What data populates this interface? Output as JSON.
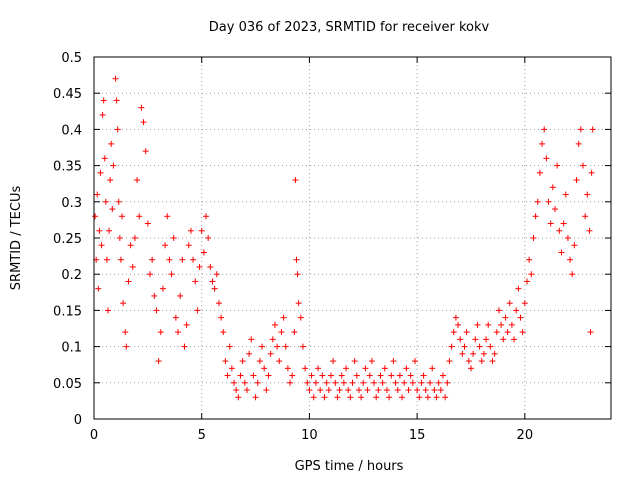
{
  "chart_data": {
    "type": "scatter",
    "title": "Day 036 of 2023, SRMTID for receiver kokv",
    "xlabel": "GPS time / hours",
    "ylabel": "SRMTID / TECUs",
    "xlim": [
      0,
      24
    ],
    "ylim": [
      0,
      0.5
    ],
    "xticks": [
      0,
      5,
      10,
      15,
      20
    ],
    "yticks": [
      0,
      0.05,
      0.1,
      0.15,
      0.2,
      0.25,
      0.3,
      0.35,
      0.4,
      0.45,
      0.5
    ],
    "xtick_labels": [
      "0",
      "5",
      "10",
      "15",
      "20"
    ],
    "ytick_labels": [
      "0",
      "0.05",
      "0.1",
      "0.15",
      "0.2",
      "0.25",
      "0.3",
      "0.35",
      "0.4",
      "0.45",
      "0.5"
    ],
    "grid": true,
    "marker": "+",
    "series": [
      {
        "name": "SRMTID",
        "color": "#ff0000",
        "points": [
          [
            0.05,
            0.28
          ],
          [
            0.1,
            0.22
          ],
          [
            0.15,
            0.31
          ],
          [
            0.2,
            0.18
          ],
          [
            0.25,
            0.26
          ],
          [
            0.3,
            0.34
          ],
          [
            0.35,
            0.24
          ],
          [
            0.4,
            0.42
          ],
          [
            0.45,
            0.44
          ],
          [
            0.5,
            0.36
          ],
          [
            0.55,
            0.3
          ],
          [
            0.6,
            0.22
          ],
          [
            0.65,
            0.15
          ],
          [
            0.7,
            0.26
          ],
          [
            0.75,
            0.33
          ],
          [
            0.8,
            0.38
          ],
          [
            0.85,
            0.29
          ],
          [
            0.9,
            0.35
          ],
          [
            1.0,
            0.47
          ],
          [
            1.05,
            0.44
          ],
          [
            1.1,
            0.4
          ],
          [
            1.15,
            0.3
          ],
          [
            1.2,
            0.25
          ],
          [
            1.25,
            0.22
          ],
          [
            1.3,
            0.28
          ],
          [
            1.35,
            0.16
          ],
          [
            1.45,
            0.12
          ],
          [
            1.5,
            0.1
          ],
          [
            1.6,
            0.19
          ],
          [
            1.7,
            0.24
          ],
          [
            1.8,
            0.21
          ],
          [
            1.9,
            0.25
          ],
          [
            2.0,
            0.33
          ],
          [
            2.1,
            0.28
          ],
          [
            2.2,
            0.43
          ],
          [
            2.3,
            0.41
          ],
          [
            2.4,
            0.37
          ],
          [
            2.5,
            0.27
          ],
          [
            2.6,
            0.2
          ],
          [
            2.7,
            0.22
          ],
          [
            2.8,
            0.17
          ],
          [
            2.9,
            0.15
          ],
          [
            3.0,
            0.08
          ],
          [
            3.1,
            0.12
          ],
          [
            3.2,
            0.18
          ],
          [
            3.3,
            0.24
          ],
          [
            3.4,
            0.28
          ],
          [
            3.5,
            0.22
          ],
          [
            3.6,
            0.2
          ],
          [
            3.7,
            0.25
          ],
          [
            3.8,
            0.14
          ],
          [
            3.9,
            0.12
          ],
          [
            4.0,
            0.17
          ],
          [
            4.1,
            0.22
          ],
          [
            4.2,
            0.1
          ],
          [
            4.3,
            0.13
          ],
          [
            4.4,
            0.24
          ],
          [
            4.5,
            0.26
          ],
          [
            4.6,
            0.22
          ],
          [
            4.7,
            0.19
          ],
          [
            4.8,
            0.15
          ],
          [
            4.9,
            0.21
          ],
          [
            5.0,
            0.26
          ],
          [
            5.1,
            0.23
          ],
          [
            5.2,
            0.28
          ],
          [
            5.3,
            0.25
          ],
          [
            5.4,
            0.21
          ],
          [
            5.5,
            0.19
          ],
          [
            5.6,
            0.18
          ],
          [
            5.7,
            0.2
          ],
          [
            5.8,
            0.16
          ],
          [
            5.9,
            0.14
          ],
          [
            6.0,
            0.12
          ],
          [
            6.1,
            0.08
          ],
          [
            6.2,
            0.06
          ],
          [
            6.3,
            0.1
          ],
          [
            6.4,
            0.07
          ],
          [
            6.5,
            0.05
          ],
          [
            6.6,
            0.04
          ],
          [
            6.7,
            0.03
          ],
          [
            6.8,
            0.06
          ],
          [
            6.9,
            0.08
          ],
          [
            7.0,
            0.05
          ],
          [
            7.1,
            0.04
          ],
          [
            7.2,
            0.09
          ],
          [
            7.3,
            0.11
          ],
          [
            7.4,
            0.06
          ],
          [
            7.5,
            0.03
          ],
          [
            7.6,
            0.05
          ],
          [
            7.7,
            0.08
          ],
          [
            7.8,
            0.1
          ],
          [
            7.9,
            0.07
          ],
          [
            8.0,
            0.04
          ],
          [
            8.1,
            0.06
          ],
          [
            8.2,
            0.09
          ],
          [
            8.3,
            0.11
          ],
          [
            8.4,
            0.13
          ],
          [
            8.5,
            0.1
          ],
          [
            8.6,
            0.08
          ],
          [
            8.7,
            0.12
          ],
          [
            8.8,
            0.14
          ],
          [
            8.9,
            0.1
          ],
          [
            9.0,
            0.07
          ],
          [
            9.1,
            0.05
          ],
          [
            9.2,
            0.06
          ],
          [
            9.3,
            0.12
          ],
          [
            9.35,
            0.33
          ],
          [
            9.4,
            0.22
          ],
          [
            9.45,
            0.2
          ],
          [
            9.5,
            0.16
          ],
          [
            9.6,
            0.14
          ],
          [
            9.7,
            0.1
          ],
          [
            9.8,
            0.07
          ],
          [
            9.9,
            0.05
          ],
          [
            10.0,
            0.04
          ],
          [
            10.1,
            0.06
          ],
          [
            10.2,
            0.03
          ],
          [
            10.3,
            0.05
          ],
          [
            10.4,
            0.07
          ],
          [
            10.5,
            0.04
          ],
          [
            10.6,
            0.06
          ],
          [
            10.7,
            0.03
          ],
          [
            10.8,
            0.05
          ],
          [
            10.9,
            0.04
          ],
          [
            11.0,
            0.06
          ],
          [
            11.1,
            0.08
          ],
          [
            11.2,
            0.05
          ],
          [
            11.3,
            0.03
          ],
          [
            11.4,
            0.04
          ],
          [
            11.5,
            0.06
          ],
          [
            11.6,
            0.05
          ],
          [
            11.7,
            0.07
          ],
          [
            11.8,
            0.04
          ],
          [
            11.9,
            0.03
          ],
          [
            12.0,
            0.05
          ],
          [
            12.1,
            0.08
          ],
          [
            12.2,
            0.06
          ],
          [
            12.3,
            0.04
          ],
          [
            12.4,
            0.03
          ],
          [
            12.5,
            0.05
          ],
          [
            12.6,
            0.07
          ],
          [
            12.7,
            0.04
          ],
          [
            12.8,
            0.06
          ],
          [
            12.9,
            0.08
          ],
          [
            13.0,
            0.05
          ],
          [
            13.1,
            0.03
          ],
          [
            13.2,
            0.04
          ],
          [
            13.3,
            0.06
          ],
          [
            13.4,
            0.05
          ],
          [
            13.5,
            0.07
          ],
          [
            13.6,
            0.04
          ],
          [
            13.7,
            0.03
          ],
          [
            13.8,
            0.06
          ],
          [
            13.9,
            0.08
          ],
          [
            14.0,
            0.05
          ],
          [
            14.1,
            0.04
          ],
          [
            14.2,
            0.06
          ],
          [
            14.3,
            0.03
          ],
          [
            14.4,
            0.05
          ],
          [
            14.5,
            0.07
          ],
          [
            14.6,
            0.04
          ],
          [
            14.7,
            0.06
          ],
          [
            14.8,
            0.05
          ],
          [
            14.9,
            0.08
          ],
          [
            15.0,
            0.04
          ],
          [
            15.1,
            0.03
          ],
          [
            15.2,
            0.05
          ],
          [
            15.3,
            0.06
          ],
          [
            15.4,
            0.04
          ],
          [
            15.5,
            0.03
          ],
          [
            15.6,
            0.05
          ],
          [
            15.7,
            0.07
          ],
          [
            15.8,
            0.04
          ],
          [
            15.9,
            0.03
          ],
          [
            16.0,
            0.05
          ],
          [
            16.1,
            0.04
          ],
          [
            16.2,
            0.06
          ],
          [
            16.3,
            0.03
          ],
          [
            16.4,
            0.05
          ],
          [
            16.5,
            0.08
          ],
          [
            16.6,
            0.1
          ],
          [
            16.7,
            0.12
          ],
          [
            16.8,
            0.14
          ],
          [
            16.9,
            0.13
          ],
          [
            17.0,
            0.11
          ],
          [
            17.1,
            0.09
          ],
          [
            17.2,
            0.1
          ],
          [
            17.3,
            0.12
          ],
          [
            17.4,
            0.08
          ],
          [
            17.5,
            0.07
          ],
          [
            17.6,
            0.09
          ],
          [
            17.7,
            0.11
          ],
          [
            17.8,
            0.13
          ],
          [
            17.9,
            0.1
          ],
          [
            18.0,
            0.08
          ],
          [
            18.1,
            0.09
          ],
          [
            18.2,
            0.11
          ],
          [
            18.3,
            0.13
          ],
          [
            18.4,
            0.1
          ],
          [
            18.5,
            0.08
          ],
          [
            18.6,
            0.09
          ],
          [
            18.7,
            0.12
          ],
          [
            18.8,
            0.15
          ],
          [
            18.9,
            0.13
          ],
          [
            19.0,
            0.11
          ],
          [
            19.1,
            0.14
          ],
          [
            19.2,
            0.12
          ],
          [
            19.3,
            0.16
          ],
          [
            19.4,
            0.13
          ],
          [
            19.5,
            0.11
          ],
          [
            19.6,
            0.15
          ],
          [
            19.7,
            0.18
          ],
          [
            19.8,
            0.14
          ],
          [
            19.9,
            0.12
          ],
          [
            20.0,
            0.16
          ],
          [
            20.1,
            0.19
          ],
          [
            20.2,
            0.22
          ],
          [
            20.3,
            0.2
          ],
          [
            20.4,
            0.25
          ],
          [
            20.5,
            0.28
          ],
          [
            20.6,
            0.3
          ],
          [
            20.7,
            0.34
          ],
          [
            20.8,
            0.38
          ],
          [
            20.9,
            0.4
          ],
          [
            21.0,
            0.36
          ],
          [
            21.1,
            0.3
          ],
          [
            21.2,
            0.27
          ],
          [
            21.3,
            0.32
          ],
          [
            21.4,
            0.29
          ],
          [
            21.5,
            0.35
          ],
          [
            21.6,
            0.26
          ],
          [
            21.7,
            0.23
          ],
          [
            21.8,
            0.27
          ],
          [
            21.9,
            0.31
          ],
          [
            22.0,
            0.25
          ],
          [
            22.1,
            0.22
          ],
          [
            22.2,
            0.2
          ],
          [
            22.3,
            0.24
          ],
          [
            22.4,
            0.33
          ],
          [
            22.5,
            0.38
          ],
          [
            22.6,
            0.4
          ],
          [
            22.7,
            0.35
          ],
          [
            22.8,
            0.28
          ],
          [
            22.9,
            0.31
          ],
          [
            23.0,
            0.26
          ],
          [
            23.05,
            0.12
          ],
          [
            23.1,
            0.34
          ],
          [
            23.15,
            0.4
          ]
        ]
      }
    ]
  }
}
